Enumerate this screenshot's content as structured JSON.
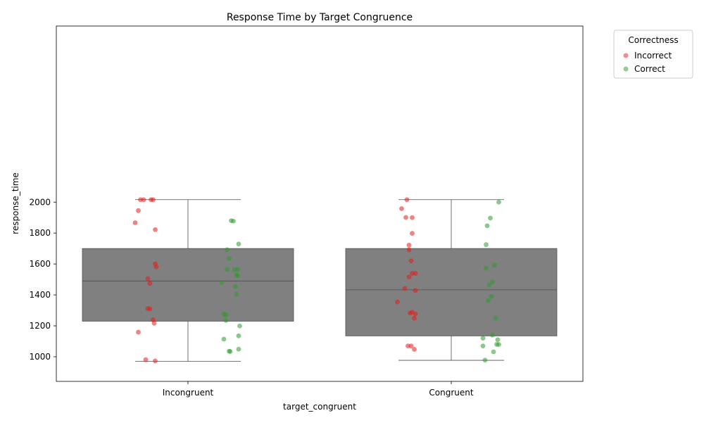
{
  "chart_data": {
    "type": "box",
    "title": "Response Time by Target Congruence",
    "xlabel": "target_congruent",
    "ylabel": "response_time",
    "ylim": [
      920,
      2070
    ],
    "yticks": [
      1000,
      1200,
      1400,
      1600,
      1800,
      2000
    ],
    "categories": [
      "Incongruent",
      "Congruent"
    ],
    "grid": false,
    "legend": {
      "title": "Correctness",
      "placement": "outside-top-right",
      "entries": [
        {
          "name": "Incorrect",
          "color": "#e8191a"
        },
        {
          "name": "Correct",
          "color": "#2b9a2b"
        }
      ]
    },
    "box_color": "#808080",
    "boxes": [
      {
        "category": "Incongruent",
        "whisker_low": 971,
        "q1": 1230,
        "median": 1490,
        "q3": 1700,
        "whisker_high": 2016
      },
      {
        "category": "Congruent",
        "whisker_low": 977,
        "q1": 1135,
        "median": 1433,
        "q3": 1700,
        "whisker_high": 2016
      }
    ],
    "series": [
      {
        "name": "Incorrect",
        "color": "#e8191a",
        "points": [
          [
            "Incongruent",
            -0.45,
            2016
          ],
          [
            "Incongruent",
            -0.42,
            2016
          ],
          [
            "Incongruent",
            -0.35,
            2016
          ],
          [
            "Incongruent",
            -0.33,
            2016
          ],
          [
            "Incongruent",
            -0.47,
            1945
          ],
          [
            "Incongruent",
            -0.5,
            1867
          ],
          [
            "Incongruent",
            -0.31,
            1822
          ],
          [
            "Incongruent",
            -0.31,
            1601
          ],
          [
            "Incongruent",
            -0.3,
            1582
          ],
          [
            "Incongruent",
            -0.38,
            1505
          ],
          [
            "Incongruent",
            -0.36,
            1474
          ],
          [
            "Incongruent",
            -0.38,
            1312
          ],
          [
            "Incongruent",
            -0.36,
            1310
          ],
          [
            "Incongruent",
            -0.33,
            1239
          ],
          [
            "Incongruent",
            -0.32,
            1217
          ],
          [
            "Incongruent",
            -0.47,
            1159
          ],
          [
            "Incongruent",
            -0.4,
            981
          ],
          [
            "Incongruent",
            -0.31,
            973
          ],
          [
            "Congruent",
            -0.42,
            2016
          ],
          [
            "Congruent",
            -0.47,
            1958
          ],
          [
            "Congruent",
            -0.43,
            1901
          ],
          [
            "Congruent",
            -0.37,
            1900
          ],
          [
            "Congruent",
            -0.37,
            1798
          ],
          [
            "Congruent",
            -0.4,
            1722
          ],
          [
            "Congruent",
            -0.4,
            1692
          ],
          [
            "Congruent",
            -0.38,
            1620
          ],
          [
            "Congruent",
            -0.37,
            1539
          ],
          [
            "Congruent",
            -0.34,
            1539
          ],
          [
            "Congruent",
            -0.4,
            1516
          ],
          [
            "Congruent",
            -0.44,
            1442
          ],
          [
            "Congruent",
            -0.34,
            1428
          ],
          [
            "Congruent",
            -0.51,
            1354
          ],
          [
            "Congruent",
            -0.37,
            1288
          ],
          [
            "Congruent",
            -0.39,
            1282
          ],
          [
            "Congruent",
            -0.34,
            1277
          ],
          [
            "Congruent",
            -0.35,
            1249
          ],
          [
            "Congruent",
            -0.41,
            1070
          ],
          [
            "Congruent",
            -0.38,
            1070
          ],
          [
            "Congruent",
            -0.35,
            1048
          ]
        ]
      },
      {
        "name": "Correct",
        "color": "#2b9a2b",
        "points": [
          [
            "Incongruent",
            0.41,
            1880
          ],
          [
            "Incongruent",
            0.43,
            1877
          ],
          [
            "Incongruent",
            0.48,
            1729
          ],
          [
            "Incongruent",
            0.37,
            1692
          ],
          [
            "Incongruent",
            0.39,
            1635
          ],
          [
            "Incongruent",
            0.37,
            1564
          ],
          [
            "Incongruent",
            0.44,
            1564
          ],
          [
            "Incongruent",
            0.47,
            1564
          ],
          [
            "Incongruent",
            0.46,
            1530
          ],
          [
            "Incongruent",
            0.47,
            1523
          ],
          [
            "Incongruent",
            0.32,
            1479
          ],
          [
            "Incongruent",
            0.45,
            1453
          ],
          [
            "Incongruent",
            0.46,
            1405
          ],
          [
            "Incongruent",
            0.34,
            1277
          ],
          [
            "Incongruent",
            0.36,
            1270
          ],
          [
            "Incongruent",
            0.36,
            1235
          ],
          [
            "Incongruent",
            0.49,
            1199
          ],
          [
            "Incongruent",
            0.48,
            1135
          ],
          [
            "Incongruent",
            0.34,
            1114
          ],
          [
            "Incongruent",
            0.48,
            1049
          ],
          [
            "Incongruent",
            0.39,
            1036
          ],
          [
            "Incongruent",
            0.4,
            1034
          ],
          [
            "Congruent",
            0.45,
            2000
          ],
          [
            "Congruent",
            0.37,
            1897
          ],
          [
            "Congruent",
            0.34,
            1847
          ],
          [
            "Congruent",
            0.33,
            1725
          ],
          [
            "Congruent",
            0.41,
            1593
          ],
          [
            "Congruent",
            0.33,
            1572
          ],
          [
            "Congruent",
            0.39,
            1484
          ],
          [
            "Congruent",
            0.36,
            1465
          ],
          [
            "Congruent",
            0.38,
            1390
          ],
          [
            "Congruent",
            0.35,
            1363
          ],
          [
            "Congruent",
            0.42,
            1249
          ],
          [
            "Congruent",
            0.39,
            1140
          ],
          [
            "Congruent",
            0.3,
            1120
          ],
          [
            "Congruent",
            0.44,
            1110
          ],
          [
            "Congruent",
            0.43,
            1080
          ],
          [
            "Congruent",
            0.45,
            1079
          ],
          [
            "Congruent",
            0.3,
            1070
          ],
          [
            "Congruent",
            0.4,
            1032
          ],
          [
            "Congruent",
            0.32,
            978
          ]
        ]
      }
    ]
  }
}
